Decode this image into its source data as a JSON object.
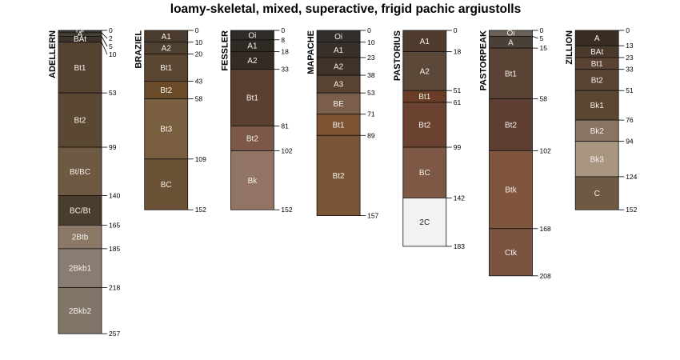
{
  "chart_data": {
    "type": "soil-profile-sketch",
    "title": "loamy-skeletal, mixed, superactive, frigid pachic argiustolls",
    "depth_units": "cm",
    "y_range": [
      0,
      257
    ],
    "profiles": [
      {
        "name": "ADELLERN",
        "horizons": [
          {
            "name": "Oi",
            "top": 0,
            "bottom": 2,
            "color": "#3b3530"
          },
          {
            "name": "A",
            "top": 2,
            "bottom": 5,
            "color": "#46403a"
          },
          {
            "name": "BAt",
            "top": 5,
            "bottom": 10,
            "color": "#3d3328"
          },
          {
            "name": "Bt1",
            "top": 10,
            "bottom": 53,
            "color": "#544330"
          },
          {
            "name": "Bt2",
            "top": 53,
            "bottom": 99,
            "color": "#5a4832"
          },
          {
            "name": "Bt/BC",
            "top": 99,
            "bottom": 140,
            "color": "#6e5a43"
          },
          {
            "name": "BC/Bt",
            "top": 140,
            "bottom": 165,
            "color": "#4a3d2e"
          },
          {
            "name": "2Btb",
            "top": 165,
            "bottom": 185,
            "color": "#8b7866"
          },
          {
            "name": "2Bkb1",
            "top": 185,
            "bottom": 218,
            "color": "#8a7c70"
          },
          {
            "name": "2Bkb2",
            "top": 218,
            "bottom": 257,
            "color": "#817568"
          }
        ]
      },
      {
        "name": "BRAZIEL",
        "horizons": [
          {
            "name": "A1",
            "top": 0,
            "bottom": 10,
            "color": "#4a3b2e"
          },
          {
            "name": "A2",
            "top": 10,
            "bottom": 20,
            "color": "#4f4030"
          },
          {
            "name": "Bt1",
            "top": 20,
            "bottom": 43,
            "color": "#5a4630"
          },
          {
            "name": "Bt2",
            "top": 43,
            "bottom": 58,
            "color": "#6b4a2a"
          },
          {
            "name": "Bt3",
            "top": 58,
            "bottom": 109,
            "color": "#7a5e40"
          },
          {
            "name": "BC",
            "top": 109,
            "bottom": 152,
            "color": "#6b5236"
          }
        ]
      },
      {
        "name": "FESSLER",
        "horizons": [
          {
            "name": "Oi",
            "top": 0,
            "bottom": 8,
            "color": "#2f2b27"
          },
          {
            "name": "A1",
            "top": 8,
            "bottom": 18,
            "color": "#302a25"
          },
          {
            "name": "A2",
            "top": 18,
            "bottom": 33,
            "color": "#342b24"
          },
          {
            "name": "Bt1",
            "top": 33,
            "bottom": 81,
            "color": "#5a3e30"
          },
          {
            "name": "Bt2",
            "top": 81,
            "bottom": 102,
            "color": "#7c5848"
          },
          {
            "name": "Bk",
            "top": 102,
            "bottom": 152,
            "color": "#927464"
          }
        ]
      },
      {
        "name": "MAPACHE",
        "horizons": [
          {
            "name": "Oi",
            "top": 0,
            "bottom": 10,
            "color": "#332e2a"
          },
          {
            "name": "A1",
            "top": 10,
            "bottom": 23,
            "color": "#39302a"
          },
          {
            "name": "A2",
            "top": 23,
            "bottom": 38,
            "color": "#3e3229"
          },
          {
            "name": "A3",
            "top": 38,
            "bottom": 53,
            "color": "#5a4232"
          },
          {
            "name": "BE",
            "top": 53,
            "bottom": 71,
            "color": "#7a5e4a"
          },
          {
            "name": "Bt1",
            "top": 71,
            "bottom": 89,
            "color": "#7e5434"
          },
          {
            "name": "Bt2",
            "top": 89,
            "bottom": 157,
            "color": "#7a5536"
          }
        ]
      },
      {
        "name": "PASTORIUS",
        "horizons": [
          {
            "name": "A1",
            "top": 0,
            "bottom": 18,
            "color": "#503c2e"
          },
          {
            "name": "A2",
            "top": 18,
            "bottom": 51,
            "color": "#5c4838"
          },
          {
            "name": "Bt1",
            "top": 51,
            "bottom": 61,
            "color": "#6a3e26"
          },
          {
            "name": "Bt2",
            "top": 61,
            "bottom": 99,
            "color": "#6b4130"
          },
          {
            "name": "BC",
            "top": 99,
            "bottom": 142,
            "color": "#7e5844"
          },
          {
            "name": "2C",
            "top": 142,
            "bottom": 183,
            "color": "#f2f2f2"
          }
        ]
      },
      {
        "name": "PASTORPEAK",
        "horizons": [
          {
            "name": "Oi",
            "top": 0,
            "bottom": 5,
            "color": "#6a6058"
          },
          {
            "name": "A",
            "top": 5,
            "bottom": 15,
            "color": "#4a4038"
          },
          {
            "name": "Bt1",
            "top": 15,
            "bottom": 58,
            "color": "#5a4234"
          },
          {
            "name": "Bt2",
            "top": 58,
            "bottom": 102,
            "color": "#5e3e30"
          },
          {
            "name": "Btk",
            "top": 102,
            "bottom": 168,
            "color": "#80553e"
          },
          {
            "name": "Ctk",
            "top": 168,
            "bottom": 208,
            "color": "#7a5440"
          }
        ]
      },
      {
        "name": "ZILLION",
        "horizons": [
          {
            "name": "A",
            "top": 0,
            "bottom": 13,
            "color": "#3a2e22"
          },
          {
            "name": "BAt",
            "top": 13,
            "bottom": 23,
            "color": "#4a3a2c"
          },
          {
            "name": "Bt1",
            "top": 23,
            "bottom": 33,
            "color": "#5a4232"
          },
          {
            "name": "Bt2",
            "top": 33,
            "bottom": 51,
            "color": "#584434"
          },
          {
            "name": "Bk1",
            "top": 51,
            "bottom": 76,
            "color": "#5a4530"
          },
          {
            "name": "Bk2",
            "top": 76,
            "bottom": 94,
            "color": "#8a7562"
          },
          {
            "name": "Bk3",
            "top": 94,
            "bottom": 124,
            "color": "#a89680"
          },
          {
            "name": "C",
            "top": 124,
            "bottom": 152,
            "color": "#6e5a42"
          }
        ]
      }
    ]
  }
}
